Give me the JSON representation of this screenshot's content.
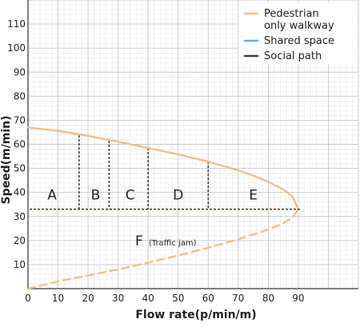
{
  "chart_data": {
    "type": "line",
    "xlabel": "Flow rate(p/min/m)",
    "ylabel": "Speed(m/min)",
    "xlim": [
      0,
      110
    ],
    "ylim": [
      0,
      120
    ],
    "x_ticks": [
      0,
      10,
      20,
      30,
      40,
      50,
      60,
      70,
      80,
      90
    ],
    "y_ticks": [
      10,
      20,
      30,
      40,
      50,
      60,
      70,
      80,
      90,
      100,
      110
    ],
    "x_tick_labels": [
      "0",
      "10",
      "20",
      "30",
      "40",
      "50",
      "60",
      "70",
      "80",
      "90"
    ],
    "y_tick_labels": [
      "10",
      "20",
      "30",
      "40",
      "50",
      "60",
      "70",
      "80",
      "90",
      "100",
      "110"
    ],
    "grid": true,
    "legend_position": "top-right",
    "legend": [
      {
        "label": "Pedestrian only walkway",
        "lines": [
          "Pedestrian",
          "only walkway"
        ],
        "color": "#f0bf86"
      },
      {
        "label": "Shared space",
        "lines": [
          "Shared space"
        ],
        "color": "#6fa8dc"
      },
      {
        "label": "Social path",
        "lines": [
          "Social path"
        ],
        "color": "#4a3b2e"
      }
    ],
    "series": [
      {
        "name": "Pedestrian only walkway",
        "style": "solid",
        "color": "#f0bf86",
        "x": [
          0,
          10,
          20,
          30,
          40,
          50,
          60,
          70,
          75,
          80,
          85,
          88,
          90
        ],
        "y": [
          67,
          65.6,
          63.5,
          61.1,
          58.5,
          55.8,
          52.8,
          49.2,
          47.0,
          44.4,
          41.2,
          38.4,
          33
        ]
      },
      {
        "name": "Pedestrian only walkway",
        "style": "dashed",
        "color": "#f0bf86",
        "x": [
          0,
          10,
          20,
          30,
          40,
          50,
          60,
          70,
          80,
          85,
          88,
          90
        ],
        "y": [
          0,
          3.0,
          5.5,
          8.0,
          10.8,
          13.8,
          17.0,
          20.5,
          24.6,
          27.2,
          29.5,
          33
        ]
      }
    ],
    "threshold_line": {
      "y": 33,
      "color": "#4a3b2e",
      "style": "dashed"
    },
    "boundaries": [
      {
        "x": 17,
        "y_top": 63.8
      },
      {
        "x": 27,
        "y_top": 61.5
      },
      {
        "x": 40,
        "y_top": 58.5
      },
      {
        "x": 60,
        "y_top": 52.8
      }
    ],
    "zones": [
      {
        "label": "A",
        "x": 8,
        "y": 39
      },
      {
        "label": "B",
        "x": 22.5,
        "y": 39
      },
      {
        "label": "C",
        "x": 34,
        "y": 39
      },
      {
        "label": "D",
        "x": 50,
        "y": 39
      },
      {
        "label": "E",
        "x": 75,
        "y": 39
      },
      {
        "label": "F",
        "x": 37,
        "y": 20,
        "note": "(Traffic jam)"
      }
    ]
  }
}
